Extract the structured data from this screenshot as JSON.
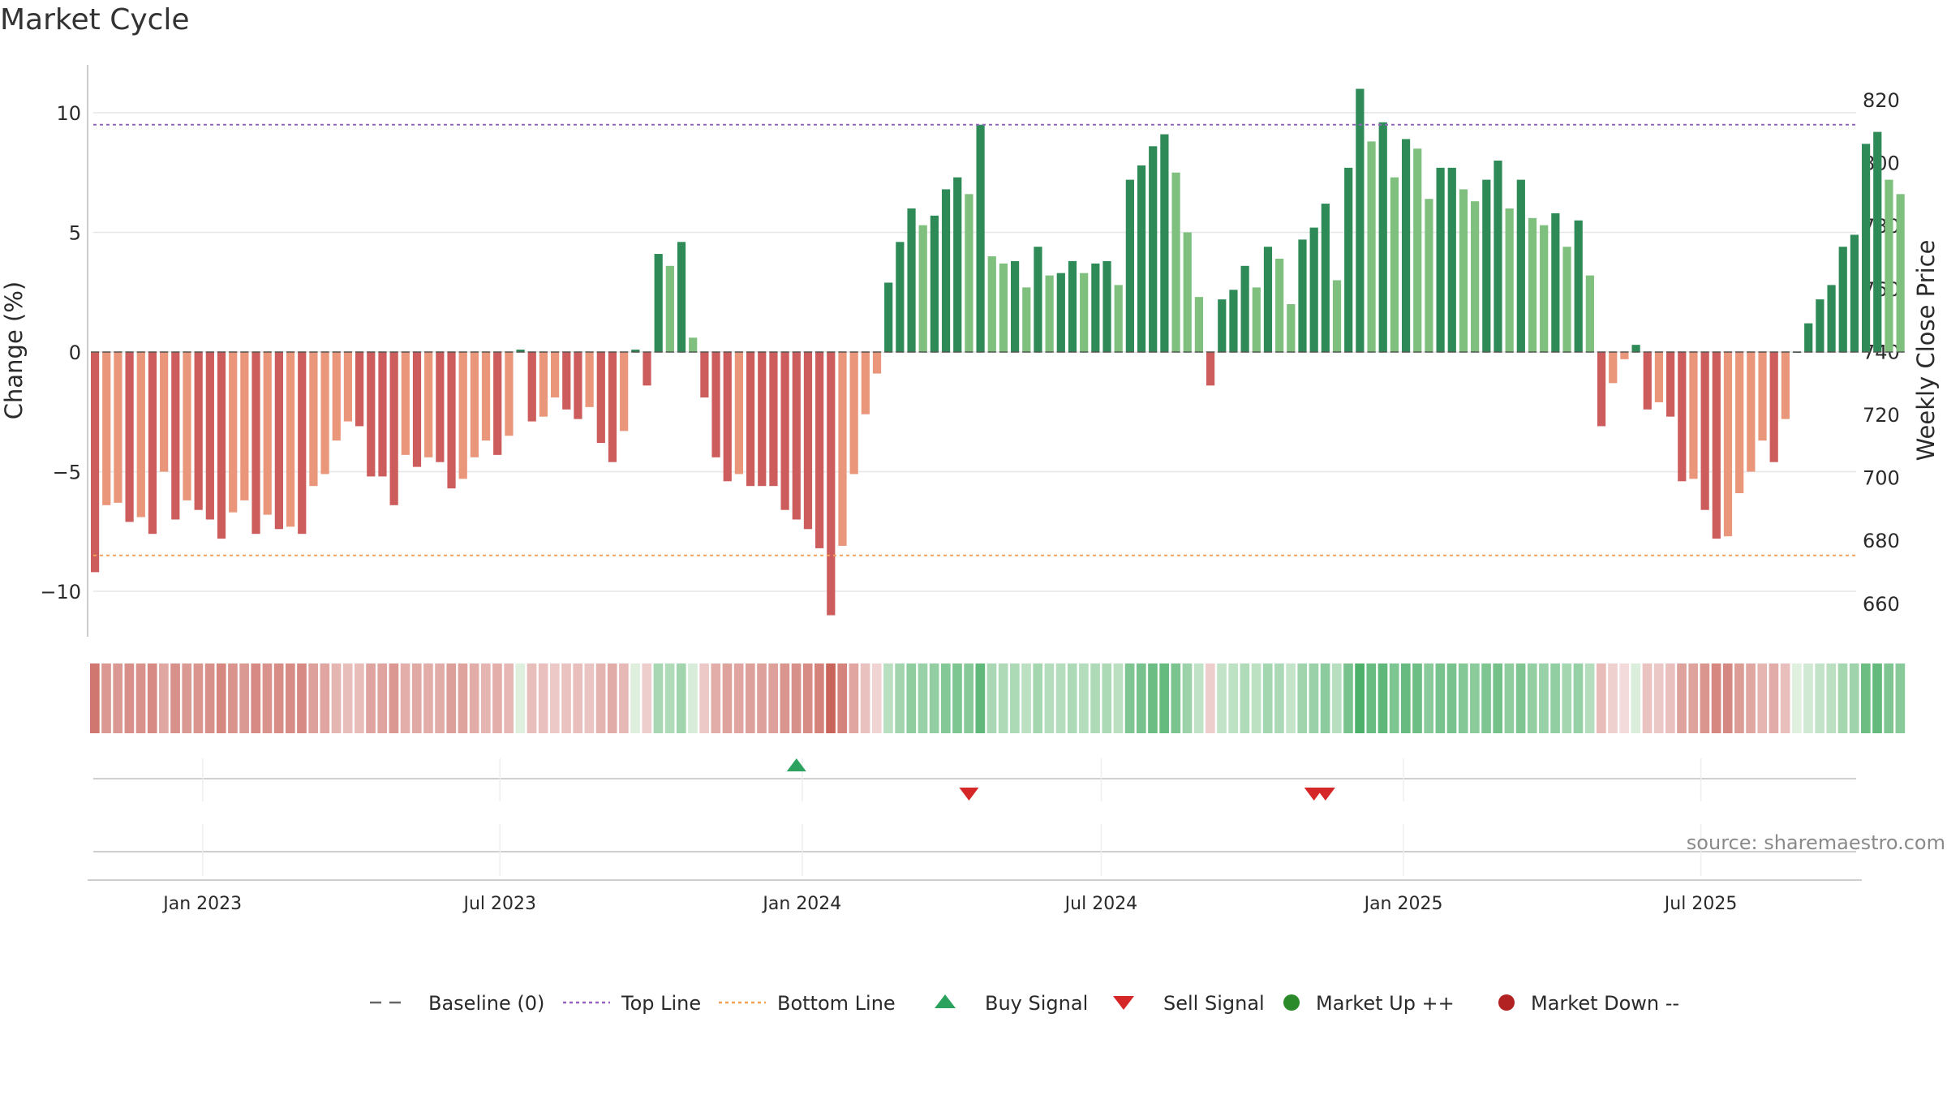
{
  "chart_data": {
    "type": "bar",
    "title": "Market Cycle",
    "ylabel": "Change (%)",
    "y2label": "Weekly Close Price",
    "ylim": [
      -12,
      12
    ],
    "y2lim": [
      656,
      836
    ],
    "ytick_values": [
      10,
      5,
      0,
      -5,
      -10
    ],
    "ytick_labels": [
      "10",
      "5",
      "0",
      "−5",
      "−10"
    ],
    "y2tick_values": [
      820,
      800,
      780,
      760,
      740,
      720,
      700,
      680,
      660
    ],
    "y2tick_labels": [
      "820",
      "800",
      "780",
      "760",
      "740",
      "720",
      "700",
      "680",
      "660"
    ],
    "x_start": "2022-10-24",
    "x_end": "2025-10-06",
    "date_ticks": [
      {
        "date": "2023-01-01",
        "label": "Jan 2023"
      },
      {
        "date": "2023-07-01",
        "label": "Jul 2023"
      },
      {
        "date": "2024-01-01",
        "label": "Jan 2024"
      },
      {
        "date": "2024-07-01",
        "label": "Jul 2024"
      },
      {
        "date": "2025-01-01",
        "label": "Jan 2025"
      },
      {
        "date": "2025-07-01",
        "label": "Jul 2025"
      }
    ],
    "weeks_start": "2022-10-24",
    "changes": [
      -9.2,
      -6.4,
      -6.3,
      -7.1,
      -6.9,
      -7.6,
      -5.0,
      -7.0,
      -6.2,
      -6.6,
      -7.0,
      -7.8,
      -6.7,
      -6.2,
      -7.6,
      -6.8,
      -7.4,
      -7.3,
      -7.6,
      -5.6,
      -5.1,
      -3.7,
      -2.9,
      -3.1,
      -5.2,
      -5.2,
      -6.4,
      -4.3,
      -4.8,
      -4.4,
      -4.6,
      -5.7,
      -5.3,
      -4.4,
      -3.7,
      -4.3,
      -3.5,
      0.1,
      -2.9,
      -2.7,
      -1.9,
      -2.4,
      -2.8,
      -2.3,
      -3.8,
      -4.6,
      -3.3,
      0.1,
      -1.4,
      4.1,
      3.6,
      4.6,
      0.6,
      -1.9,
      -4.4,
      -5.4,
      -5.1,
      -5.6,
      -5.6,
      -5.6,
      -6.6,
      -7.0,
      -7.4,
      -8.2,
      -11.0,
      -8.1,
      -5.1,
      -2.6,
      -0.9,
      2.9,
      4.6,
      6.0,
      5.3,
      5.7,
      6.8,
      7.3,
      6.6,
      9.5,
      4.0,
      3.7,
      3.8,
      2.7,
      4.4,
      3.2,
      3.3,
      3.8,
      3.3,
      3.7,
      3.8,
      2.8,
      7.2,
      7.8,
      8.6,
      9.1,
      7.5,
      5.0,
      2.3,
      -1.4,
      2.2,
      2.6,
      3.6,
      2.7,
      4.4,
      3.9,
      2.0,
      4.7,
      5.2,
      6.2,
      3.0,
      7.7,
      11.0,
      8.8,
      9.6,
      7.3,
      8.9,
      8.5,
      6.4,
      7.7,
      7.7,
      6.8,
      6.3,
      7.2,
      8.0,
      6.0,
      7.2,
      5.6,
      5.3,
      5.8,
      4.4,
      5.5,
      3.2,
      -3.1,
      -1.3,
      -0.3,
      0.3,
      -2.4,
      -2.1,
      -2.7,
      -5.4,
      -5.3,
      -6.6,
      -7.8,
      -7.7,
      -5.9,
      -5.0,
      -3.7,
      -4.6,
      -2.8,
      0.0,
      1.2,
      2.2,
      2.8,
      4.4,
      4.9,
      8.7,
      9.2,
      7.2,
      6.6
    ],
    "weekly_close_price": "not shown",
    "top_line": 9.5,
    "bottom_line": -8.5,
    "buy_signals": [
      "2023-12-25"
    ],
    "sell_signals": [
      "2024-04-08",
      "2024-11-04",
      "2024-11-11"
    ],
    "legend_position": "bottom",
    "legend": [
      {
        "label": "Baseline (0)",
        "marker": "dashed-line",
        "color": "#666666"
      },
      {
        "label": "Top Line",
        "marker": "dotted-line",
        "color": "#9467bd"
      },
      {
        "label": "Bottom Line",
        "marker": "dotted-line",
        "color": "#f2a05a"
      },
      {
        "label": "Buy Signal",
        "marker": "triangle-up",
        "color": "#2ca25f"
      },
      {
        "label": "Sell Signal",
        "marker": "triangle-down",
        "color": "#d62728"
      },
      {
        "label": "Market Up ++",
        "marker": "circle",
        "color": "#2a8a2a"
      },
      {
        "label": "Market Down --",
        "marker": "circle",
        "color": "#b22222"
      }
    ],
    "colors": {
      "up_strong": "#2e8b57",
      "up_weak": "#7fc07f",
      "down_strong": "#cd5c5c",
      "down_weak": "#e9967a",
      "grid": "#e6e6e6"
    }
  },
  "source": "source: sharemaestro.com"
}
